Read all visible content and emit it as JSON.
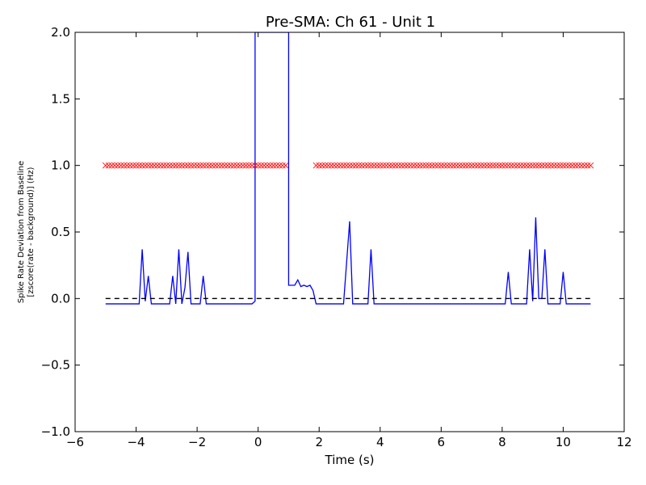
{
  "chart_data": {
    "type": "line",
    "title": "Pre-SMA: Ch 61 - Unit 1",
    "xlabel": "Time (s)",
    "ylabel_line1": "Spike Rate Deviation from Baseline",
    "ylabel_line2": "[zscore(rate - background)] (Hz)",
    "xlim": [
      -6,
      12
    ],
    "ylim": [
      -1.0,
      2.0
    ],
    "x_ticks": [
      -6,
      -4,
      -2,
      0,
      2,
      4,
      6,
      8,
      10,
      12
    ],
    "x_tick_labels": [
      "−6",
      "−4",
      "−2",
      "0",
      "2",
      "4",
      "6",
      "8",
      "10",
      "12"
    ],
    "y_ticks": [
      -1.0,
      -0.5,
      0.0,
      0.5,
      1.0,
      1.5,
      2.0
    ],
    "y_tick_labels": [
      "−1.0",
      "−0.5",
      "0.0",
      "0.5",
      "1.0",
      "1.5",
      "2.0"
    ],
    "grid": false,
    "series": [
      {
        "role": "spike-rate",
        "color": "#0000ff",
        "style": "solid",
        "x": [
          -5.0,
          -3.9,
          -3.8,
          -3.7,
          -3.6,
          -3.5,
          -2.9,
          -2.8,
          -2.7,
          -2.6,
          -2.5,
          -2.4,
          -2.3,
          -2.2,
          -1.9,
          -1.8,
          -1.7,
          -0.2,
          -0.1,
          -0.1,
          1.0,
          1.0,
          1.2,
          1.3,
          1.4,
          1.5,
          1.6,
          1.7,
          1.8,
          1.9,
          2.8,
          3.0,
          3.1,
          3.6,
          3.7,
          3.8,
          8.1,
          8.2,
          8.3,
          8.8,
          8.9,
          9.0,
          9.1,
          9.2,
          9.3,
          9.4,
          9.5,
          9.9,
          10.0,
          10.1,
          10.9
        ],
        "y": [
          -0.04,
          -0.04,
          0.37,
          -0.02,
          0.17,
          -0.04,
          -0.04,
          0.17,
          -0.04,
          0.37,
          -0.04,
          0.08,
          0.35,
          -0.04,
          -0.04,
          0.17,
          -0.04,
          -0.04,
          -0.02,
          2.0,
          2.0,
          0.1,
          0.1,
          0.14,
          0.09,
          0.1,
          0.09,
          0.1,
          0.06,
          -0.04,
          -0.04,
          0.58,
          -0.04,
          -0.04,
          0.37,
          -0.04,
          -0.04,
          0.2,
          -0.04,
          -0.04,
          0.37,
          -0.02,
          0.61,
          0.0,
          0.0,
          0.37,
          -0.04,
          -0.04,
          0.2,
          -0.04,
          -0.04
        ]
      },
      {
        "role": "baseline",
        "color": "#000000",
        "style": "dashed",
        "x": [
          -5.0,
          10.9
        ],
        "y": [
          0.0,
          0.0
        ]
      },
      {
        "role": "significance-markers",
        "color": "#ff0000",
        "marker": "x",
        "y_level": 1.0,
        "segments": [
          {
            "x_start": -5.0,
            "x_end": 0.9,
            "step": 0.1
          },
          {
            "x_start": 1.9,
            "x_end": 10.9,
            "step": 0.1
          }
        ]
      }
    ]
  }
}
